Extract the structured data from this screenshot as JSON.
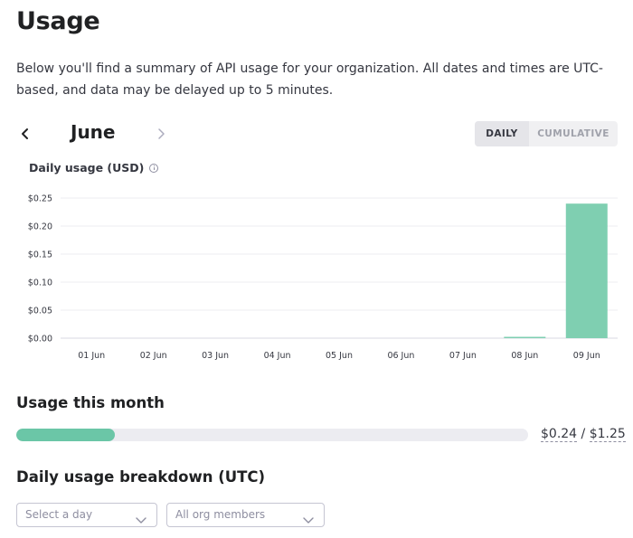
{
  "header": {
    "title": "Usage",
    "intro": "Below you'll find a summary of API usage for your organization. All dates and times are UTC-based, and data may be delayed up to 5 minutes."
  },
  "month_nav": {
    "month": "June",
    "prev_icon": "chevron-left-icon",
    "next_icon": "chevron-right-icon"
  },
  "view_toggle": {
    "daily": "DAILY",
    "cumulative": "CUMULATIVE",
    "selected": "DAILY"
  },
  "chart_header": {
    "title": "Daily usage (USD)",
    "info_icon": "info-icon"
  },
  "chart_data": {
    "type": "bar",
    "title": "Daily usage (USD)",
    "categories": [
      "01 Jun",
      "02 Jun",
      "03 Jun",
      "04 Jun",
      "05 Jun",
      "06 Jun",
      "07 Jun",
      "08 Jun",
      "09 Jun"
    ],
    "values": [
      0,
      0,
      0,
      0,
      0,
      0,
      0,
      0.001,
      0.24
    ],
    "yticks": [
      "$0.00",
      "$0.05",
      "$0.10",
      "$0.15",
      "$0.20",
      "$0.25"
    ],
    "ylim": [
      0,
      0.25
    ],
    "grid": true,
    "bar_color": "#7fcfb1"
  },
  "usage_month": {
    "title": "Usage this month",
    "used": "$0.24",
    "separator": " / ",
    "limit": "$1.25",
    "progress": 0.192,
    "fill_color": "#6bc6a7"
  },
  "breakdown": {
    "title": "Daily usage breakdown (UTC)",
    "day_select": {
      "placeholder": "Select a day",
      "icon": "chevron-down-icon"
    },
    "members_select": {
      "value": "All org members",
      "icon": "chevron-down-icon"
    }
  }
}
